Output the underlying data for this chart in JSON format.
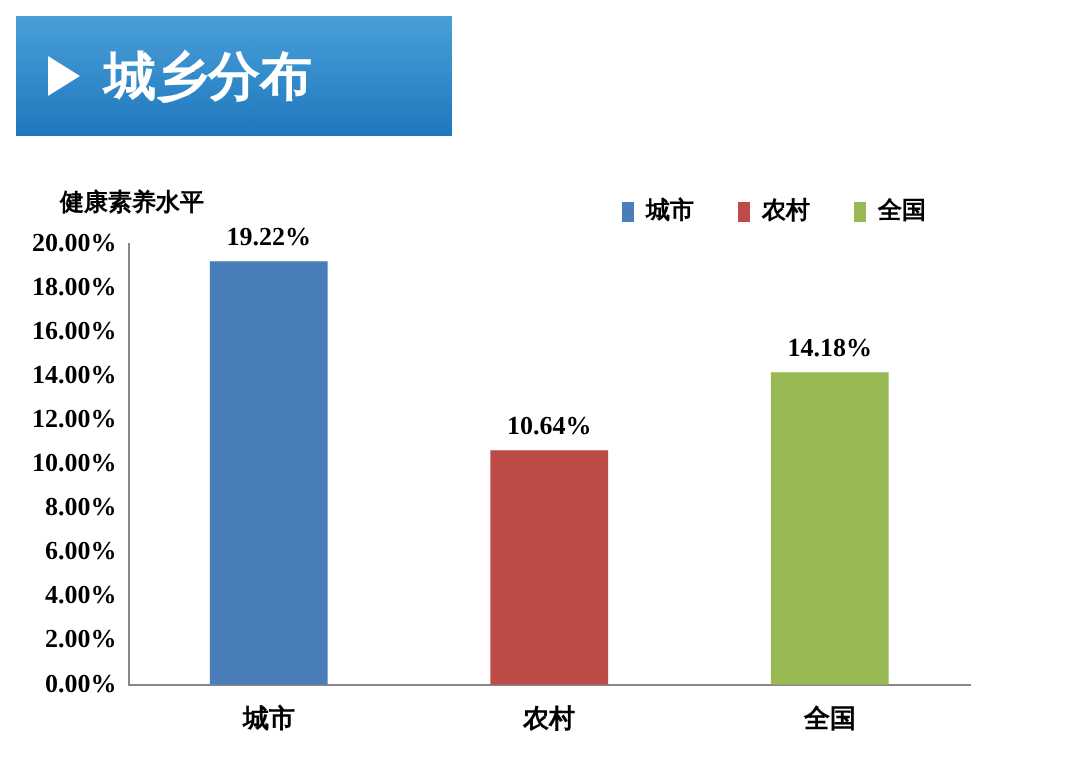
{
  "chart_data": {
    "type": "bar",
    "title": "城乡分布",
    "ylabel": "健康素养水平",
    "categories": [
      "城市",
      "农村",
      "全国"
    ],
    "series": [
      {
        "name": "城市",
        "color": "#4a7ebb",
        "values": [
          19.22,
          null,
          null
        ],
        "value_labels": [
          "19.22%",
          null,
          null
        ]
      },
      {
        "name": "农村",
        "color": "#be4b48",
        "values": [
          null,
          10.64,
          null
        ],
        "value_labels": [
          null,
          "10.64%",
          null
        ]
      },
      {
        "name": "全国",
        "color": "#98b954",
        "values": [
          null,
          null,
          14.18
        ],
        "value_labels": [
          null,
          null,
          "14.18%"
        ]
      }
    ],
    "ylim": [
      0,
      20
    ],
    "yticks": [
      {
        "value": 0,
        "label": "0.00%"
      },
      {
        "value": 2,
        "label": "2.00%"
      },
      {
        "value": 4,
        "label": "4.00%"
      },
      {
        "value": 6,
        "label": "6.00%"
      },
      {
        "value": 8,
        "label": "8.00%"
      },
      {
        "value": 10,
        "label": "10.00%"
      },
      {
        "value": 12,
        "label": "12.00%"
      },
      {
        "value": 14,
        "label": "14.00%"
      },
      {
        "value": 16,
        "label": "16.00%"
      },
      {
        "value": 18,
        "label": "18.00%"
      },
      {
        "value": 20,
        "label": "20.00%"
      }
    ],
    "grid": false,
    "legend": "top right"
  }
}
